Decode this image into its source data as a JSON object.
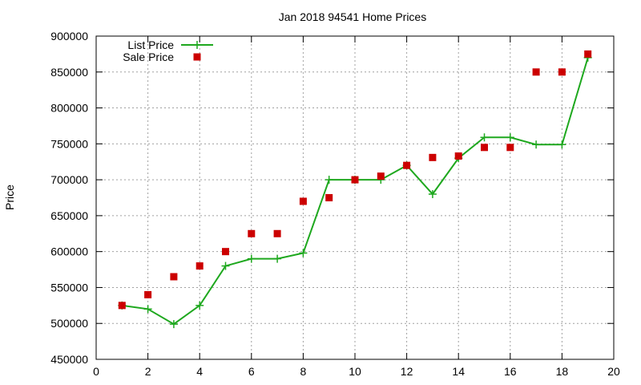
{
  "chart_data": {
    "type": "line",
    "title": "Jan 2018 94541 Home Prices",
    "xlabel": "",
    "ylabel": "Price",
    "xlim": [
      0,
      20
    ],
    "ylim": [
      450000,
      900000
    ],
    "xticks": [
      0,
      2,
      4,
      6,
      8,
      10,
      12,
      14,
      16,
      18,
      20
    ],
    "yticks": [
      450000,
      500000,
      550000,
      600000,
      650000,
      700000,
      750000,
      800000,
      850000,
      900000
    ],
    "grid": true,
    "legend_position": "top-left",
    "series": [
      {
        "name": "List Price",
        "style": "line+cross",
        "color": "#1ea81e",
        "x": [
          1,
          2,
          3,
          4,
          5,
          6,
          7,
          8,
          9,
          10,
          11,
          12,
          13,
          14,
          15,
          16,
          17,
          18,
          19
        ],
        "y": [
          525000,
          520000,
          499000,
          525000,
          580000,
          590000,
          590000,
          598000,
          700000,
          700000,
          700000,
          720000,
          680000,
          730000,
          759000,
          759000,
          749000,
          749000,
          870000
        ]
      },
      {
        "name": "Sale Price",
        "style": "square",
        "color": "#cc0000",
        "x": [
          1,
          2,
          3,
          4,
          5,
          6,
          7,
          8,
          9,
          10,
          11,
          12,
          13,
          14,
          15,
          16,
          17,
          18,
          19
        ],
        "y": [
          525000,
          540000,
          565000,
          580000,
          600000,
          625000,
          625000,
          670000,
          675000,
          700000,
          705000,
          720000,
          731000,
          733000,
          745000,
          745000,
          850000,
          850000,
          875000
        ]
      }
    ]
  }
}
